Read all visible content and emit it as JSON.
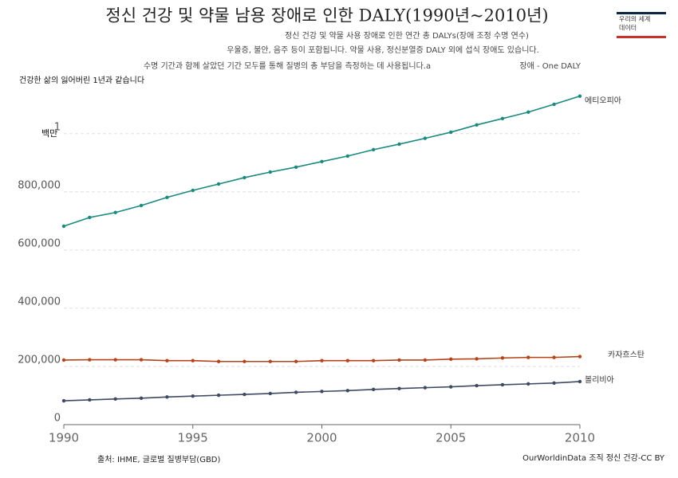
{
  "chart_data": {
    "type": "line",
    "title": "정신 건강 및 약물 남용 장애로 인한 DALY(1990년~2010년)",
    "subtitle_lines": [
      "정신 건강 및 약물 사용 장애로 인한 연간 총 DALYs(장애 조정 수명 연수)",
      "우울증, 불안, 음주 등이 포함됩니다. 약물 사용, 정신분열증 DALY 외에 섭식 장애도 있습니다.",
      "수명 기간과 함께 살았던 기간 모두를 통해 질병의 총 부담을 측정하는 데 사용됩니다.a"
    ],
    "note_right": "장애 - One DALY",
    "note_left": "건강한 삶의 잃어버린 1년과 같습니다",
    "logo": [
      "우리의 세계",
      "데이터"
    ],
    "y_unit_label": "백만",
    "source": "출처: IHME, 글로벌 질병부담(GBD)",
    "credit": "OurWorldinData 조직 정신 건강-CC BY",
    "x": [
      1990,
      1991,
      1992,
      1993,
      1994,
      1995,
      1996,
      1997,
      1998,
      1999,
      2000,
      2001,
      2002,
      2003,
      2004,
      2005,
      2006,
      2007,
      2008,
      2009,
      2010
    ],
    "xlim": [
      1990,
      2010
    ],
    "xticks": [
      1990,
      1995,
      2000,
      2005,
      2010
    ],
    "ylim": [
      0,
      1150000
    ],
    "yticks": [
      0,
      {
        "value": 200000,
        "label": "200,000"
      },
      {
        "value": 400000,
        "label": "400,000"
      },
      {
        "value": 600000,
        "label": "600,000"
      },
      {
        "value": 800000,
        "label": "800,000"
      },
      {
        "value": 1000000,
        "label": "1"
      }
    ],
    "grid": true,
    "series": [
      {
        "name": "에티오피아",
        "color": "#1a8a7f",
        "values": [
          682000,
          712000,
          729000,
          753000,
          781000,
          805000,
          827000,
          849000,
          868000,
          885000,
          904000,
          923000,
          945000,
          964000,
          984000,
          1005000,
          1030000,
          1052000,
          1074000,
          1101000,
          1129000
        ]
      },
      {
        "name": "카자흐스탄",
        "color": "#b5441a",
        "values": [
          222000,
          223000,
          223000,
          223000,
          220000,
          220000,
          217000,
          217000,
          217000,
          217000,
          220000,
          220000,
          220000,
          222000,
          222000,
          225000,
          226000,
          229000,
          231000,
          231000,
          234000
        ]
      },
      {
        "name": "볼리비아",
        "color": "#3d4a62",
        "values": [
          82000,
          85000,
          88000,
          91000,
          95000,
          98000,
          101000,
          104000,
          107000,
          111000,
          114000,
          117000,
          121000,
          124000,
          127000,
          130000,
          134000,
          137000,
          140000,
          143000,
          148000
        ]
      }
    ]
  }
}
